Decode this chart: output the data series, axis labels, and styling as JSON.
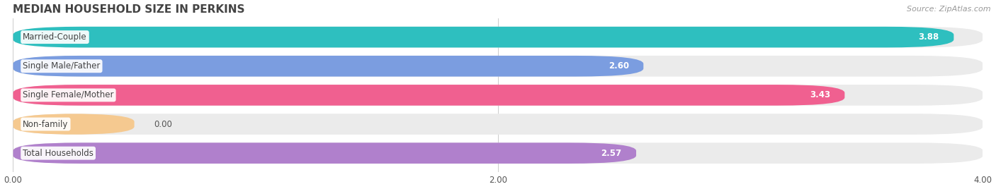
{
  "title": "MEDIAN HOUSEHOLD SIZE IN PERKINS",
  "source": "Source: ZipAtlas.com",
  "categories": [
    "Married-Couple",
    "Single Male/Father",
    "Single Female/Mother",
    "Non-family",
    "Total Households"
  ],
  "values": [
    3.88,
    2.6,
    3.43,
    0.0,
    2.57
  ],
  "bar_colors": [
    "#2ebfbf",
    "#7b9de0",
    "#f06090",
    "#f5c990",
    "#b080cc"
  ],
  "bar_bg_color": "#ebebeb",
  "xlim": [
    0.0,
    4.0
  ],
  "xticks": [
    0.0,
    2.0,
    4.0
  ],
  "title_fontsize": 11,
  "label_fontsize": 8.5,
  "value_fontsize": 8.5,
  "source_fontsize": 8,
  "background_color": "#ffffff",
  "bar_height": 0.72,
  "rounding_size": 0.28
}
